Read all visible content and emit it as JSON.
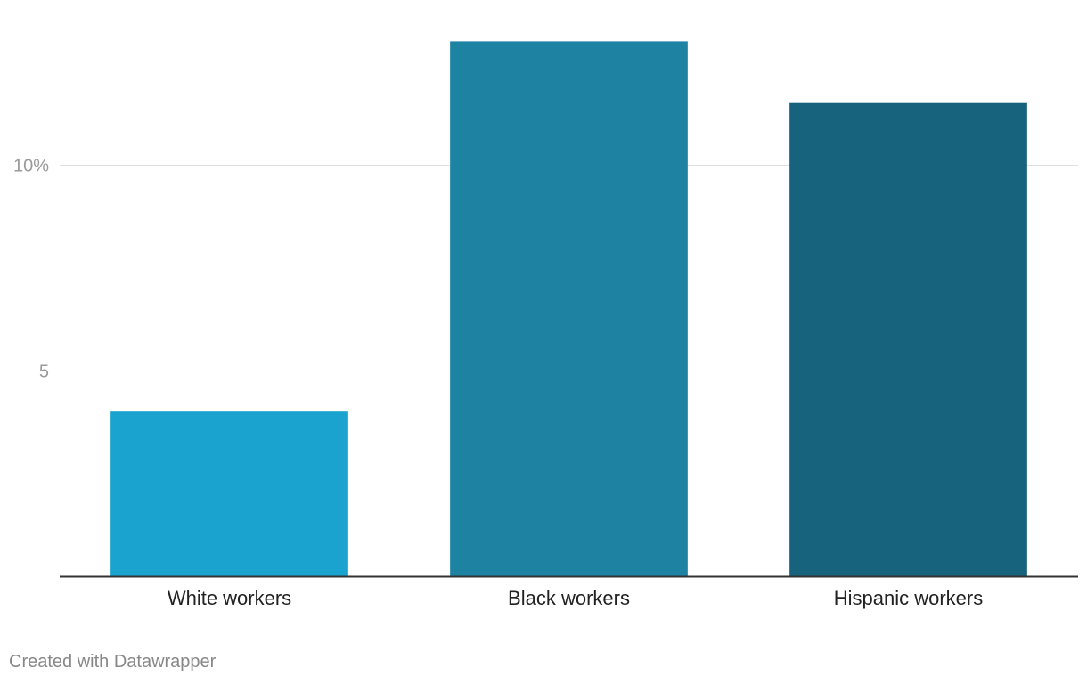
{
  "chart_data": {
    "type": "bar",
    "categories": [
      "White workers",
      "Black workers",
      "Hispanic workers"
    ],
    "values": [
      4.0,
      13.0,
      11.5
    ],
    "colors": [
      "#1ba3cf",
      "#1e83a3",
      "#17627c"
    ],
    "ylim": [
      0,
      14
    ],
    "yticks": [
      5,
      10
    ],
    "ytick_labels": [
      "5",
      "10%"
    ],
    "grid": true,
    "title": "",
    "xlabel": "",
    "ylabel": ""
  },
  "footer": {
    "credit": "Created with Datawrapper"
  }
}
